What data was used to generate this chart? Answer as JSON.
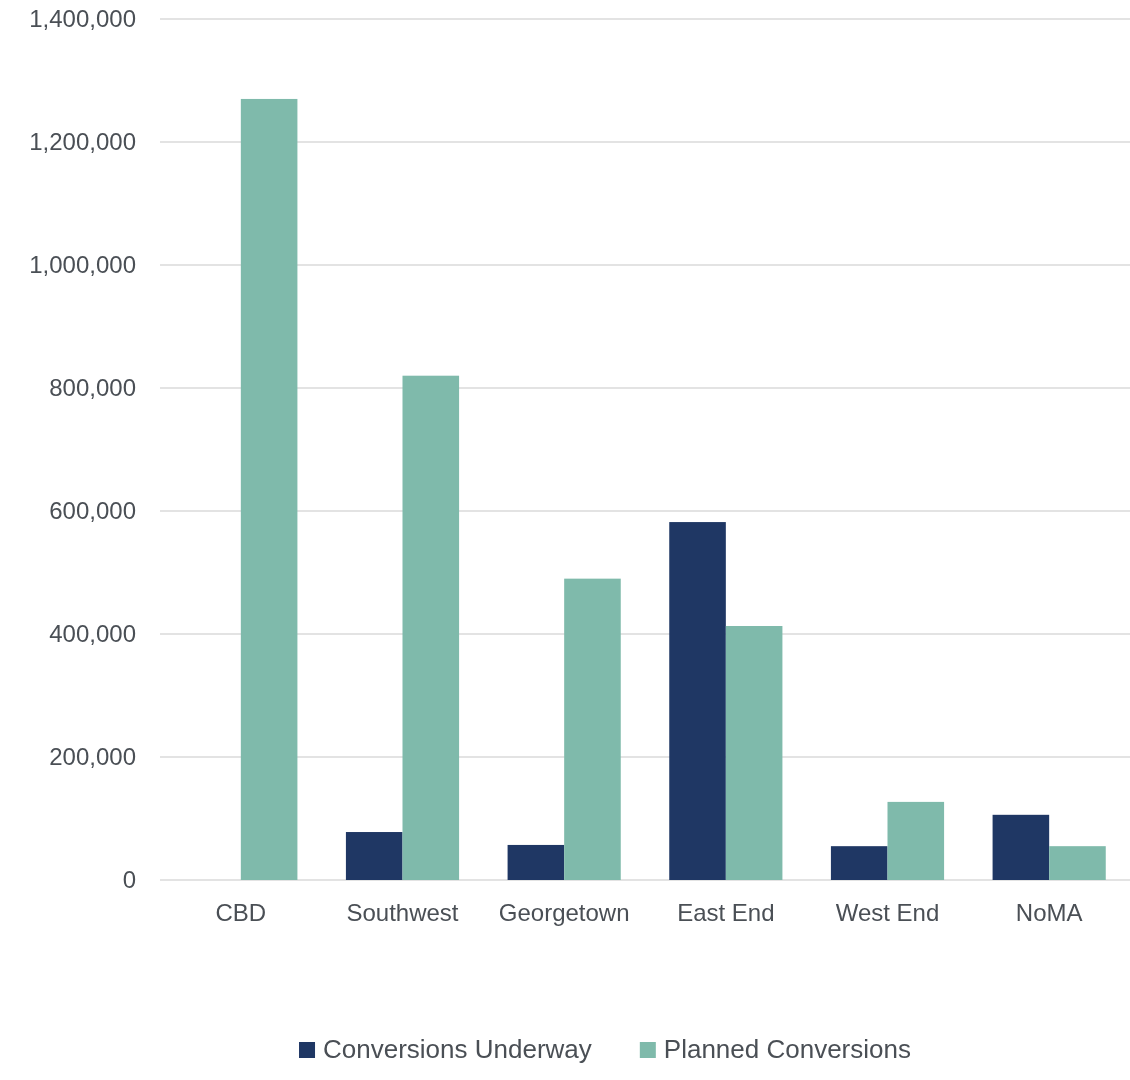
{
  "chart_data": {
    "type": "bar",
    "categories": [
      "CBD",
      "Southwest",
      "Georgetown",
      "East End",
      "West End",
      "NoMA"
    ],
    "series": [
      {
        "name": "Conversions Underway",
        "color": "#1f3764",
        "values": [
          0,
          78000,
          57000,
          582000,
          55000,
          106000
        ]
      },
      {
        "name": "Planned Conversions",
        "color": "#7fbaab",
        "values": [
          1270000,
          820000,
          490000,
          413000,
          127000,
          55000
        ]
      }
    ],
    "ylim": [
      0,
      1400000
    ],
    "yticks": [
      {
        "value": 0,
        "label": "0"
      },
      {
        "value": 200000,
        "label": "200,000"
      },
      {
        "value": 400000,
        "label": "400,000"
      },
      {
        "value": 600000,
        "label": "600,000"
      },
      {
        "value": 800000,
        "label": "800,000"
      },
      {
        "value": 1000000,
        "label": "1,000,000"
      },
      {
        "value": 1200000,
        "label": "1,200,000"
      },
      {
        "value": 1400000,
        "label": "1,400,000"
      }
    ],
    "grid": "y",
    "legend": "bottom"
  }
}
